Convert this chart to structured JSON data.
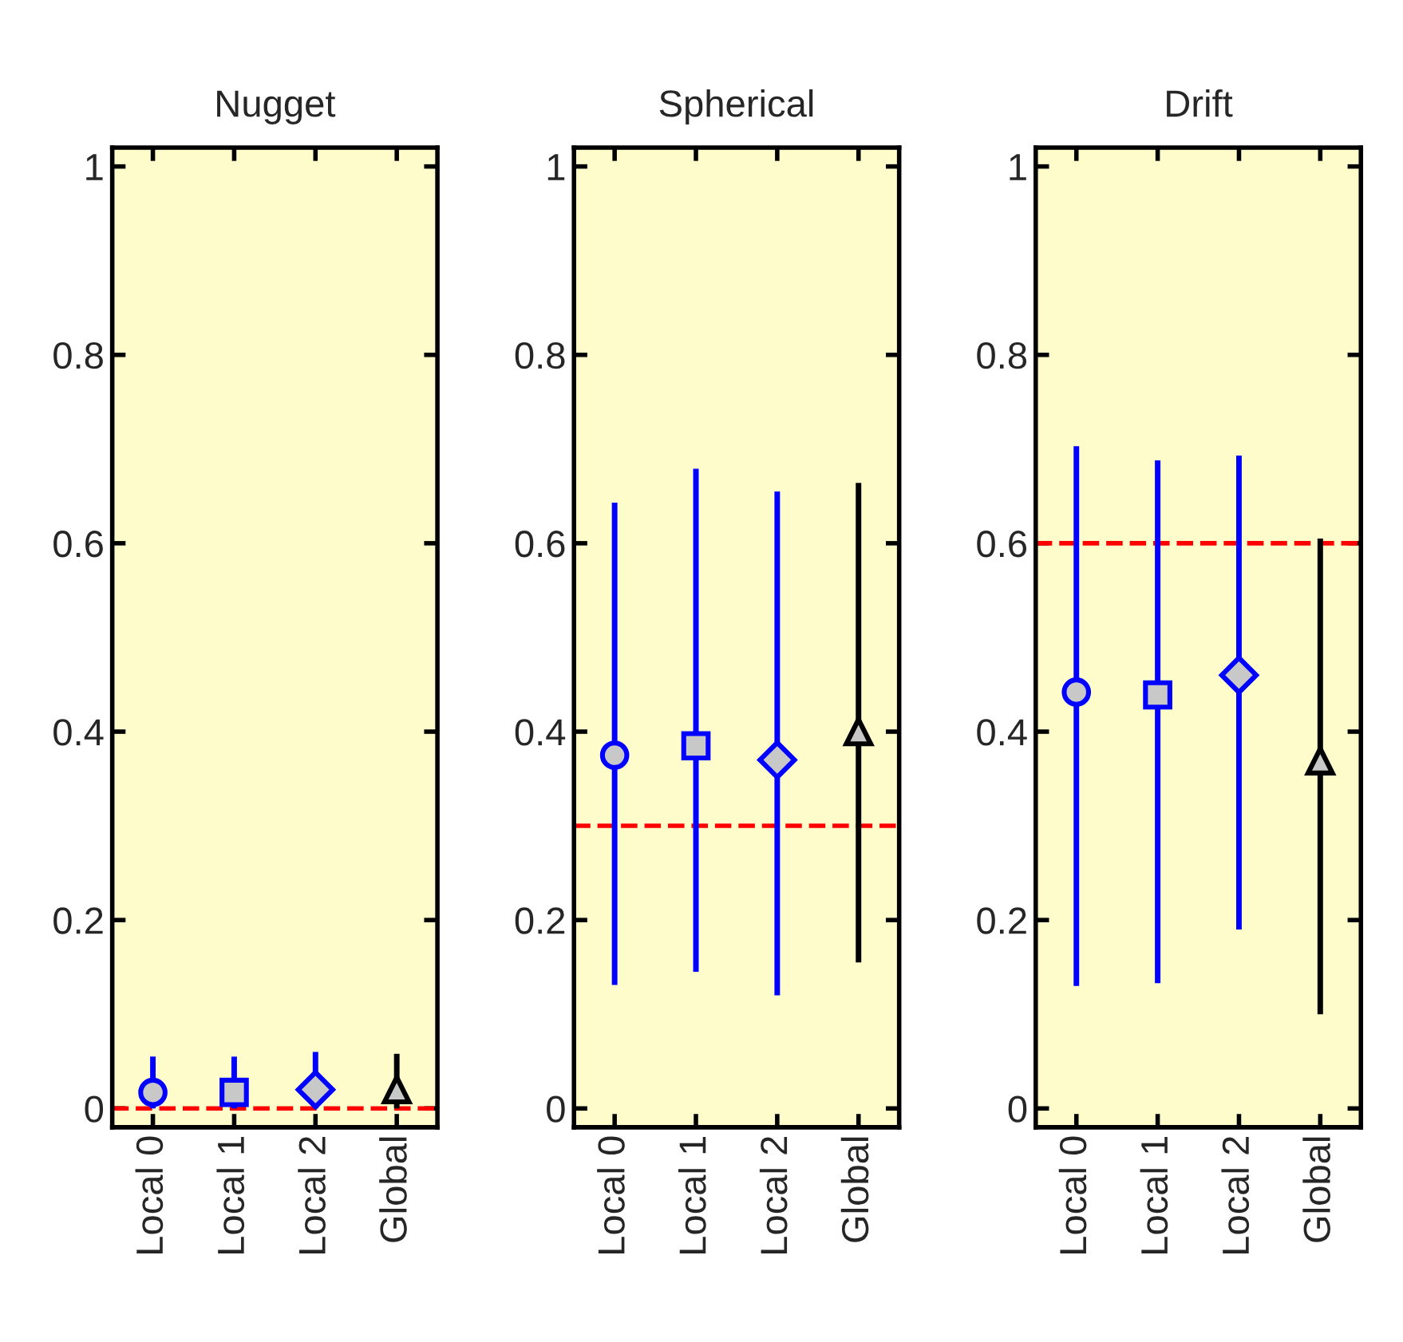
{
  "chart_data": [
    {
      "type": "scatter",
      "title": "Nugget",
      "categories": [
        "Local 0",
        "Local 1",
        "Local 2",
        "Global"
      ],
      "ylim": [
        -0.02,
        1.02
      ],
      "yticks": [
        0,
        0.2,
        0.4,
        0.6,
        0.8,
        1
      ],
      "grid": false,
      "series": [
        {
          "color": "#0000ff",
          "marker": "circle",
          "values": [
            0.017,
            null,
            null,
            null
          ],
          "errors": [
            [
              0,
              0.055
            ],
            null,
            null,
            null
          ]
        },
        {
          "color": "#0000ff",
          "marker": "square",
          "values": [
            null,
            0.017,
            null,
            null
          ],
          "errors": [
            null,
            [
              0,
              0.055
            ],
            null,
            null
          ]
        },
        {
          "color": "#0000ff",
          "marker": "diamond",
          "values": [
            null,
            null,
            0.02,
            null
          ],
          "errors": [
            null,
            null,
            [
              0,
              0.06
            ],
            null
          ]
        },
        {
          "color": "#000000",
          "marker": "triangle",
          "values": [
            null,
            null,
            null,
            0.02
          ],
          "errors": [
            null,
            null,
            null,
            [
              0,
              0.058
            ]
          ]
        }
      ],
      "ref_lines": [
        {
          "axis": "y",
          "value": 0,
          "color": "#ff0000",
          "line_style": "dashed"
        }
      ]
    },
    {
      "type": "scatter",
      "title": "Spherical",
      "categories": [
        "Local 0",
        "Local 1",
        "Local 2",
        "Global"
      ],
      "ylim": [
        -0.02,
        1.02
      ],
      "yticks": [
        0,
        0.2,
        0.4,
        0.6,
        0.8,
        1
      ],
      "grid": false,
      "series": [
        {
          "color": "#0000ff",
          "marker": "circle",
          "values": [
            0.375,
            null,
            null,
            null
          ],
          "errors": [
            [
              0.131,
              0.643
            ],
            null,
            null,
            null
          ]
        },
        {
          "color": "#0000ff",
          "marker": "square",
          "values": [
            null,
            0.385,
            null,
            null
          ],
          "errors": [
            null,
            [
              0.145,
              0.679
            ],
            null,
            null
          ]
        },
        {
          "color": "#0000ff",
          "marker": "diamond",
          "values": [
            null,
            null,
            0.37,
            null
          ],
          "errors": [
            null,
            null,
            [
              0.12,
              0.655
            ],
            null
          ]
        },
        {
          "color": "#000000",
          "marker": "triangle",
          "values": [
            null,
            null,
            null,
            0.4
          ],
          "errors": [
            null,
            null,
            null,
            [
              0.155,
              0.664
            ]
          ]
        }
      ],
      "ref_lines": [
        {
          "axis": "y",
          "value": 0.3,
          "color": "#ff0000",
          "line_style": "dashed"
        }
      ]
    },
    {
      "type": "scatter",
      "title": "Drift",
      "categories": [
        "Local 0",
        "Local 1",
        "Local 2",
        "Global"
      ],
      "ylim": [
        -0.02,
        1.02
      ],
      "yticks": [
        0,
        0.2,
        0.4,
        0.6,
        0.8,
        1
      ],
      "grid": false,
      "series": [
        {
          "color": "#0000ff",
          "marker": "circle",
          "values": [
            0.442,
            null,
            null,
            null
          ],
          "errors": [
            [
              0.13,
              0.703
            ],
            null,
            null,
            null
          ]
        },
        {
          "color": "#0000ff",
          "marker": "square",
          "values": [
            null,
            0.439,
            null,
            null
          ],
          "errors": [
            null,
            [
              0.133,
              0.688
            ],
            null,
            null
          ]
        },
        {
          "color": "#0000ff",
          "marker": "diamond",
          "values": [
            null,
            null,
            0.46,
            null
          ],
          "errors": [
            null,
            null,
            [
              0.19,
              0.693
            ],
            null
          ]
        },
        {
          "color": "#000000",
          "marker": "triangle",
          "values": [
            null,
            null,
            null,
            0.369
          ],
          "errors": [
            null,
            null,
            null,
            [
              0.1,
              0.605
            ]
          ]
        }
      ],
      "ref_lines": [
        {
          "axis": "y",
          "value": 0.6,
          "color": "#ff0000",
          "line_style": "dashed"
        }
      ]
    }
  ]
}
